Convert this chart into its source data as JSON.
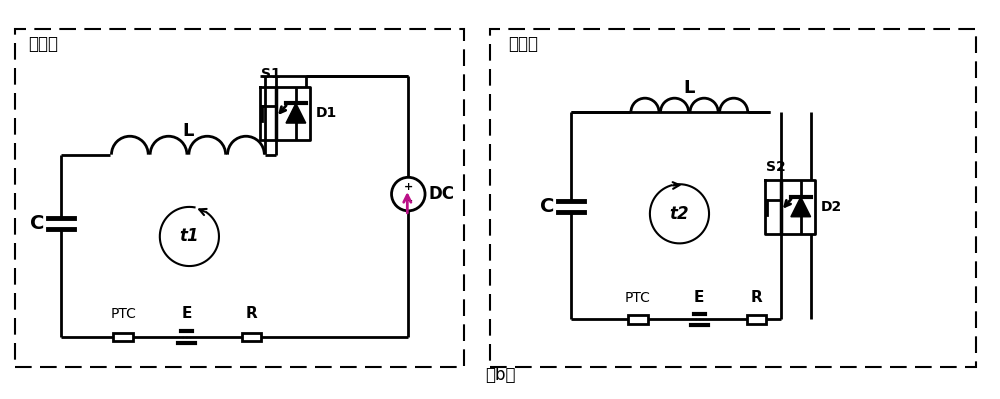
{
  "title_left": "回路一",
  "title_right": "回路二",
  "caption": "（b）",
  "bg_color": "#ffffff",
  "line_color": "#000000",
  "arrow_color": "#000000",
  "lw": 2.0
}
